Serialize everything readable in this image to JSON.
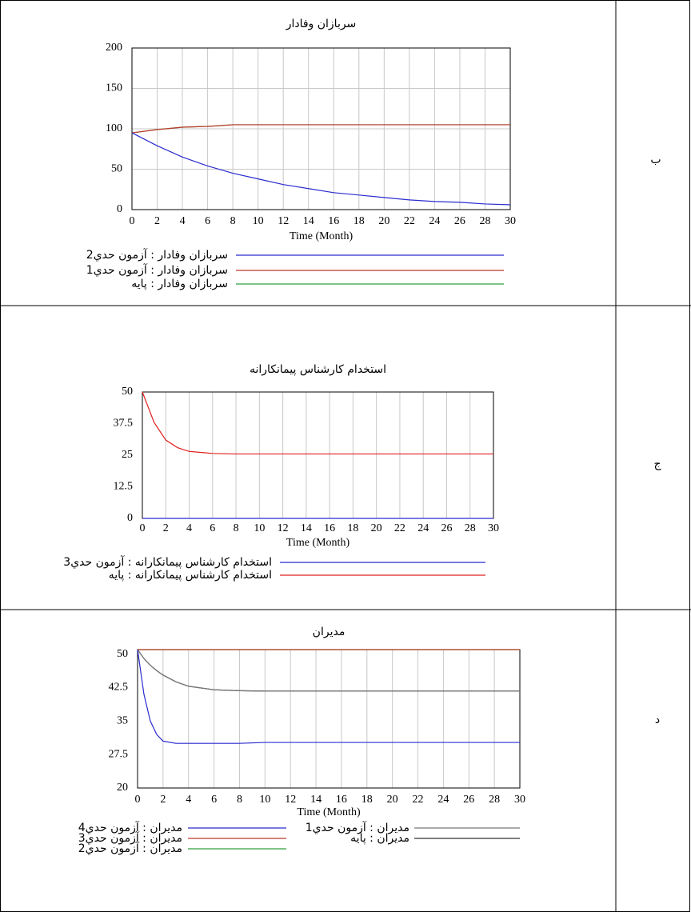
{
  "chart_data": [
    {
      "type": "line",
      "panel_label": "ب",
      "title": "سربازان وفادار",
      "xlabel": "Time (Month)",
      "x": [
        0,
        2,
        4,
        6,
        8,
        10,
        12,
        14,
        16,
        18,
        20,
        22,
        24,
        26,
        28,
        30
      ],
      "xlim": [
        0,
        30
      ],
      "xticks": [
        0,
        2,
        4,
        6,
        8,
        10,
        12,
        14,
        16,
        18,
        20,
        22,
        24,
        26,
        28,
        30
      ],
      "ylim": [
        0,
        200
      ],
      "yticks": [
        0,
        50,
        100,
        150,
        200
      ],
      "grid": "both",
      "series": [
        {
          "name": "سربازان وفادار : آزمون حدي2",
          "color": "#2b2bd0",
          "values": [
            95,
            79,
            65,
            54,
            45,
            38,
            31,
            26,
            21,
            18,
            15,
            12,
            10,
            9,
            7,
            6
          ]
        },
        {
          "name": "سربازان وفادار : آزمون حدي1",
          "color": "#c0392b",
          "values": [
            95,
            99,
            102,
            103,
            105,
            105,
            105,
            105,
            105,
            105,
            105,
            105,
            105,
            105,
            105,
            105
          ]
        },
        {
          "name": "سربازان وفادار : پایه",
          "color": "#2e9e3e",
          "values": [
            95,
            99,
            102,
            103,
            105,
            105,
            105,
            105,
            105,
            105,
            105,
            105,
            105,
            105,
            105,
            105
          ]
        }
      ]
    },
    {
      "type": "line",
      "panel_label": "ج",
      "title": "استخدام کارشناس پیمانکارانه",
      "xlabel": "Time (Month)",
      "x": [
        0,
        1,
        2,
        3,
        4,
        6,
        8,
        10,
        12,
        14,
        16,
        18,
        20,
        22,
        24,
        26,
        28,
        30
      ],
      "xlim": [
        0,
        30
      ],
      "xticks": [
        0,
        2,
        4,
        6,
        8,
        10,
        12,
        14,
        16,
        18,
        20,
        22,
        24,
        26,
        28,
        30
      ],
      "ylim": [
        0,
        50
      ],
      "yticks": [
        0,
        12.5,
        25,
        37.5,
        50
      ],
      "grid": "x",
      "series": [
        {
          "name": "استخدام کارشناس پیمانکارانه : آزمون حدي3",
          "color": "#2b2bd0",
          "values": [
            0,
            0,
            0,
            0,
            0,
            0,
            0,
            0,
            0,
            0,
            0,
            0,
            0,
            0,
            0,
            0,
            0,
            0
          ]
        },
        {
          "name": "استخدام کارشناس پیمانکارانه : پایه",
          "color": "#e02020",
          "values": [
            50,
            38,
            31,
            28,
            26.5,
            25.7,
            25.5,
            25.5,
            25.5,
            25.5,
            25.5,
            25.5,
            25.5,
            25.5,
            25.5,
            25.5,
            25.5,
            25.5
          ]
        }
      ]
    },
    {
      "type": "line",
      "panel_label": "د",
      "title": "مدیران",
      "xlabel": "Time (Month)",
      "x": [
        0,
        0.5,
        1,
        1.5,
        2,
        3,
        4,
        6,
        8,
        10,
        12,
        14,
        16,
        18,
        20,
        22,
        24,
        26,
        28,
        30
      ],
      "xlim": [
        0,
        30
      ],
      "xticks": [
        0,
        2,
        4,
        6,
        8,
        10,
        12,
        14,
        16,
        18,
        20,
        22,
        24,
        26,
        28,
        30
      ],
      "ylim": [
        20,
        51
      ],
      "yticks": [
        20,
        27.5,
        35,
        42.5,
        50
      ],
      "grid": "x",
      "series": [
        {
          "name": "مدیران : آزمون حدي4",
          "color": "#2b2bd0",
          "values": [
            51,
            41,
            35,
            32,
            30.5,
            30,
            30,
            30,
            30,
            30.2,
            30.2,
            30.2,
            30.2,
            30.2,
            30.2,
            30.2,
            30.2,
            30.2,
            30.2,
            30.2
          ]
        },
        {
          "name": "مدیران : آزمون حدي3",
          "color": "#c0392b",
          "values": [
            51,
            51,
            51,
            51,
            51,
            51,
            51,
            51,
            51,
            51,
            51,
            51,
            51,
            51,
            51,
            51,
            51,
            51,
            51,
            51
          ]
        },
        {
          "name": "مدیران : آزمون حدي2",
          "color": "#2e9e3e",
          "values": [
            51,
            51,
            51,
            51,
            51,
            51,
            51,
            51,
            51,
            51,
            51,
            51,
            51,
            51,
            51,
            51,
            51,
            51,
            51,
            51
          ]
        },
        {
          "name": "مدیران : آزمون حدي1",
          "color": "#777777",
          "values": [
            51,
            49,
            47.5,
            46.3,
            45.3,
            43.8,
            42.8,
            42,
            41.8,
            41.7,
            41.7,
            41.7,
            41.7,
            41.7,
            41.7,
            41.7,
            41.7,
            41.7,
            41.7,
            41.7
          ]
        },
        {
          "name": "مدیران : پایه",
          "color": "#333333",
          "values": [
            51,
            49,
            47.5,
            46.3,
            45.3,
            43.8,
            42.8,
            42,
            41.8,
            41.7,
            41.7,
            41.7,
            41.7,
            41.7,
            41.7,
            41.7,
            41.7,
            41.7,
            41.7,
            41.7
          ]
        }
      ]
    }
  ]
}
